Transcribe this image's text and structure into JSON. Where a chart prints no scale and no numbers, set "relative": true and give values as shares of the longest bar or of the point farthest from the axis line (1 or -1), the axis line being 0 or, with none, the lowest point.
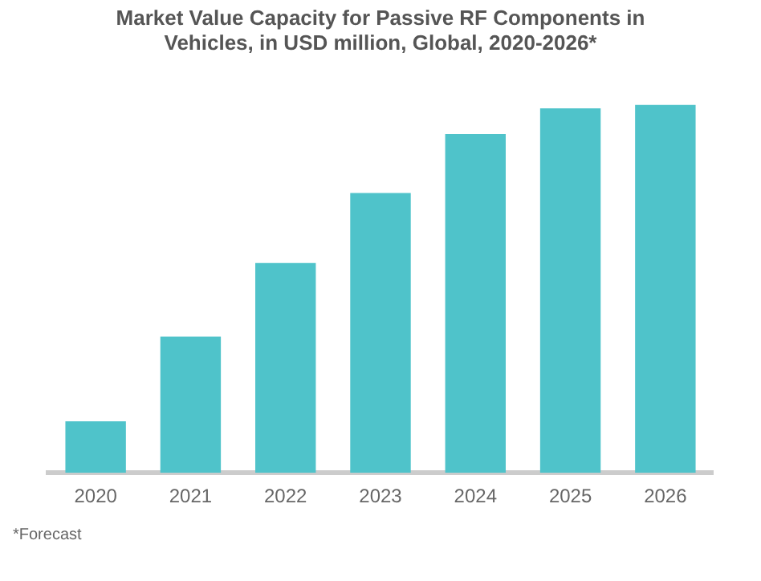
{
  "chart_data": {
    "type": "bar",
    "title": [
      "Market Value Capacity for Passive RF Components in",
      "Vehicles, in USD million, Global, 2020-2026*"
    ],
    "categories": [
      "2020",
      "2021",
      "2022",
      "2023",
      "2024",
      "2025",
      "2026"
    ],
    "values": [
      0.14,
      0.37,
      0.57,
      0.76,
      0.92,
      0.99,
      1
    ],
    "color": "#4fc3ca",
    "relative": true,
    "grid": false,
    "legend": false,
    "annotations": [
      "*Forecast"
    ]
  }
}
